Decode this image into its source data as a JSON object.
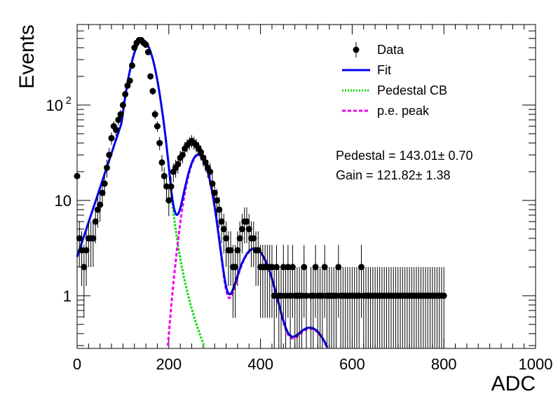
{
  "chart_data": {
    "type": "scatter",
    "xlabel": "ADC",
    "ylabel": "Events",
    "xlim": [
      0,
      1000
    ],
    "ylim": [
      0.28,
      700
    ],
    "yscale": "log",
    "grid": false,
    "legend_position": "top-right",
    "x_ticks": [
      {
        "value": 0,
        "label": "0"
      },
      {
        "value": 200,
        "label": "200"
      },
      {
        "value": 400,
        "label": "400"
      },
      {
        "value": 600,
        "label": "600"
      },
      {
        "value": 800,
        "label": "800"
      },
      {
        "value": 1000,
        "label": "1000"
      }
    ],
    "y_ticks": [
      {
        "value": 1,
        "label": "1"
      },
      {
        "value": 10,
        "label": "10"
      },
      {
        "value": 100,
        "label": "10",
        "sup": "2"
      }
    ],
    "legend": [
      {
        "label": "Data",
        "style": "marker",
        "color": "#000000"
      },
      {
        "label": "Fit",
        "style": "solid",
        "color": "#0000ee"
      },
      {
        "label": "Pedestal CB",
        "style": "dotted",
        "color": "#00dd00"
      },
      {
        "label": "p.e. peak",
        "style": "dashed",
        "color": "#ee00ee"
      }
    ],
    "annotations": [
      {
        "text": "Pedestal = 143.01± 0.70"
      },
      {
        "text": "Gain = 121.82± 1.38"
      }
    ],
    "fit_params": {
      "pedestal_mean": 143.01,
      "pedestal_mean_err": 0.7,
      "gain": 121.82,
      "gain_err": 1.38,
      "pedestal_sigma": 23,
      "pedestal_amplitude": 480,
      "pe_sigma": 22,
      "pe_amplitudes": [
        30,
        3.1,
        0.45
      ]
    },
    "series": [
      {
        "name": "Data",
        "kind": "points",
        "color": "#000000",
        "x": [
          0,
          5,
          10,
          15,
          20,
          25,
          30,
          35,
          40,
          45,
          50,
          55,
          60,
          65,
          70,
          75,
          80,
          85,
          90,
          95,
          100,
          105,
          110,
          115,
          120,
          125,
          130,
          135,
          140,
          145,
          150,
          155,
          160,
          165,
          170,
          175,
          180,
          185,
          190,
          195,
          200,
          205,
          210,
          215,
          220,
          225,
          230,
          235,
          240,
          245,
          250,
          255,
          260,
          265,
          270,
          275,
          280,
          285,
          290,
          295,
          300,
          305,
          310,
          315,
          320,
          325,
          330,
          335,
          340,
          345,
          350,
          355,
          360,
          365,
          370,
          375,
          380,
          385,
          390,
          395,
          400,
          405,
          410,
          415,
          420,
          425,
          430,
          435,
          440,
          445,
          450,
          455,
          460,
          465,
          470,
          475,
          480,
          485,
          490,
          495,
          500,
          510,
          515,
          520,
          525,
          530,
          535,
          540,
          545,
          550,
          555,
          560,
          565,
          570,
          575,
          580,
          585,
          590,
          595,
          600,
          605,
          610,
          615,
          620,
          625,
          630,
          635,
          640,
          645,
          650,
          655,
          660,
          665,
          670,
          675,
          680,
          685,
          690,
          695,
          700,
          705,
          710,
          715,
          720,
          725,
          730,
          735,
          740,
          745,
          750,
          755,
          760,
          765,
          770,
          775,
          780,
          785,
          790,
          795,
          800
        ],
        "y": [
          18,
          4,
          3,
          2,
          3,
          4,
          4,
          4,
          6,
          8,
          9,
          12,
          15,
          22,
          30,
          45,
          60,
          55,
          70,
          80,
          100,
          130,
          160,
          180,
          260,
          400,
          450,
          480,
          480,
          450,
          430,
          360,
          200,
          140,
          80,
          60,
          40,
          25,
          18,
          14,
          10,
          14,
          20,
          22,
          24,
          28,
          30,
          35,
          38,
          40,
          42,
          40,
          38,
          35,
          32,
          28,
          25,
          22,
          20,
          15,
          12,
          10,
          8,
          6,
          5,
          4,
          3,
          3,
          2,
          2,
          3,
          4,
          5,
          6,
          6,
          5,
          4,
          4,
          3,
          3,
          2,
          2,
          2,
          2,
          2,
          2,
          1,
          2,
          1,
          1,
          2,
          1,
          2,
          1,
          2,
          1,
          1,
          1,
          1,
          2,
          1,
          1,
          1,
          2,
          1,
          1,
          1,
          2,
          1,
          1,
          1,
          1,
          1,
          2,
          1,
          1,
          1,
          1,
          1,
          1,
          1,
          1,
          1,
          2,
          1,
          1,
          1,
          1,
          1,
          1,
          1,
          1,
          1,
          1,
          1,
          1,
          1,
          1,
          1,
          1,
          1,
          1,
          1,
          1,
          1,
          1,
          1,
          1,
          1,
          1,
          1,
          1,
          1,
          1,
          1,
          1,
          1,
          1,
          1,
          1
        ]
      },
      {
        "name": "Fit",
        "kind": "curve",
        "color": "#0000ee",
        "x_range": [
          0,
          860
        ]
      },
      {
        "name": "Pedestal CB",
        "kind": "curve",
        "color": "#00dd00",
        "x_range": [
          0,
          760
        ]
      },
      {
        "name": "p.e. peak",
        "kind": "curve",
        "color": "#ee00ee",
        "x_range": [
          0,
          560
        ]
      }
    ]
  }
}
